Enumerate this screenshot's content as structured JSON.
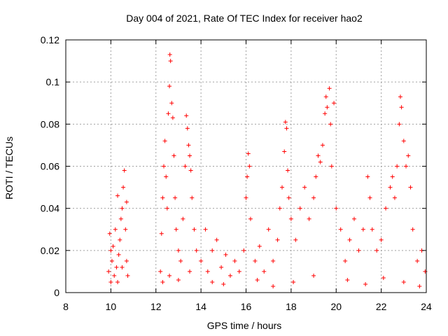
{
  "chart_data": {
    "type": "scatter",
    "title": "Day 004 of 2021, Rate Of TEC Index for receiver hao2",
    "xlabel": "GPS time / hours",
    "ylabel": "ROTI / TECUs",
    "xlim": [
      8,
      24
    ],
    "ylim": [
      0,
      0.12
    ],
    "x_ticks": [
      "8",
      "10",
      "12",
      "14",
      "16",
      "18",
      "20",
      "22",
      "24"
    ],
    "y_ticks": [
      "0",
      "0.02",
      "0.04",
      "0.06",
      "0.08",
      "0.1",
      "0.12"
    ],
    "x_tick_values": [
      8,
      10,
      12,
      14,
      16,
      18,
      20,
      22,
      24
    ],
    "y_tick_values": [
      0,
      0.02,
      0.04,
      0.06,
      0.08,
      0.1,
      0.12
    ],
    "grid": true,
    "marker": "+",
    "color": "#ff0000",
    "points": [
      [
        9.9,
        0.01
      ],
      [
        9.95,
        0.028
      ],
      [
        10.0,
        0.005
      ],
      [
        10.05,
        0.015
      ],
      [
        10.1,
        0.022
      ],
      [
        10.15,
        0.008
      ],
      [
        10.2,
        0.03
      ],
      [
        10.25,
        0.012
      ],
      [
        10.3,
        0.046
      ],
      [
        10.35,
        0.018
      ],
      [
        10.4,
        0.025
      ],
      [
        10.45,
        0.035
      ],
      [
        10.5,
        0.04
      ],
      [
        10.55,
        0.05
      ],
      [
        10.6,
        0.058
      ],
      [
        10.65,
        0.03
      ],
      [
        10.7,
        0.015
      ],
      [
        10.75,
        0.008
      ],
      [
        10.0,
        0.02
      ],
      [
        10.3,
        0.005
      ],
      [
        10.5,
        0.012
      ],
      [
        10.7,
        0.043
      ],
      [
        12.2,
        0.01
      ],
      [
        12.25,
        0.028
      ],
      [
        12.3,
        0.045
      ],
      [
        12.35,
        0.06
      ],
      [
        12.4,
        0.072
      ],
      [
        12.45,
        0.055
      ],
      [
        12.5,
        0.04
      ],
      [
        12.55,
        0.085
      ],
      [
        12.6,
        0.098
      ],
      [
        12.62,
        0.113
      ],
      [
        12.65,
        0.11
      ],
      [
        12.7,
        0.09
      ],
      [
        12.75,
        0.083
      ],
      [
        12.8,
        0.065
      ],
      [
        12.85,
        0.045
      ],
      [
        12.9,
        0.03
      ],
      [
        13.0,
        0.02
      ],
      [
        13.1,
        0.015
      ],
      [
        13.2,
        0.035
      ],
      [
        13.3,
        0.06
      ],
      [
        13.35,
        0.084
      ],
      [
        13.4,
        0.078
      ],
      [
        13.45,
        0.07
      ],
      [
        13.5,
        0.065
      ],
      [
        13.55,
        0.058
      ],
      [
        13.6,
        0.045
      ],
      [
        13.7,
        0.03
      ],
      [
        13.8,
        0.02
      ],
      [
        12.3,
        0.005
      ],
      [
        12.6,
        0.008
      ],
      [
        13.0,
        0.006
      ],
      [
        13.5,
        0.01
      ],
      [
        14.0,
        0.015
      ],
      [
        14.2,
        0.03
      ],
      [
        14.3,
        0.01
      ],
      [
        14.5,
        0.02
      ],
      [
        14.7,
        0.025
      ],
      [
        14.9,
        0.012
      ],
      [
        15.1,
        0.018
      ],
      [
        15.3,
        0.008
      ],
      [
        15.5,
        0.015
      ],
      [
        15.7,
        0.01
      ],
      [
        15.9,
        0.02
      ],
      [
        16.0,
        0.045
      ],
      [
        16.05,
        0.055
      ],
      [
        16.1,
        0.066
      ],
      [
        16.15,
        0.06
      ],
      [
        16.2,
        0.035
      ],
      [
        16.4,
        0.015
      ],
      [
        16.6,
        0.022
      ],
      [
        16.8,
        0.01
      ],
      [
        17.0,
        0.03
      ],
      [
        17.2,
        0.015
      ],
      [
        17.4,
        0.025
      ],
      [
        17.5,
        0.04
      ],
      [
        17.6,
        0.05
      ],
      [
        17.7,
        0.067
      ],
      [
        17.75,
        0.081
      ],
      [
        17.8,
        0.078
      ],
      [
        17.85,
        0.058
      ],
      [
        17.9,
        0.045
      ],
      [
        18.0,
        0.035
      ],
      [
        18.2,
        0.025
      ],
      [
        18.4,
        0.04
      ],
      [
        18.6,
        0.05
      ],
      [
        18.8,
        0.035
      ],
      [
        19.0,
        0.045
      ],
      [
        19.1,
        0.055
      ],
      [
        19.2,
        0.065
      ],
      [
        19.3,
        0.062
      ],
      [
        19.4,
        0.07
      ],
      [
        19.5,
        0.085
      ],
      [
        19.55,
        0.093
      ],
      [
        19.6,
        0.088
      ],
      [
        19.7,
        0.097
      ],
      [
        19.75,
        0.08
      ],
      [
        19.8,
        0.06
      ],
      [
        19.9,
        0.09
      ],
      [
        20.0,
        0.04
      ],
      [
        20.2,
        0.03
      ],
      [
        20.4,
        0.015
      ],
      [
        20.6,
        0.025
      ],
      [
        20.8,
        0.035
      ],
      [
        21.0,
        0.02
      ],
      [
        21.2,
        0.03
      ],
      [
        21.4,
        0.055
      ],
      [
        21.5,
        0.045
      ],
      [
        21.6,
        0.03
      ],
      [
        21.8,
        0.02
      ],
      [
        22.0,
        0.025
      ],
      [
        22.2,
        0.04
      ],
      [
        22.4,
        0.05
      ],
      [
        22.5,
        0.055
      ],
      [
        22.6,
        0.045
      ],
      [
        22.7,
        0.06
      ],
      [
        22.8,
        0.08
      ],
      [
        22.85,
        0.093
      ],
      [
        22.9,
        0.088
      ],
      [
        23.0,
        0.072
      ],
      [
        23.1,
        0.06
      ],
      [
        23.2,
        0.065
      ],
      [
        23.3,
        0.05
      ],
      [
        23.4,
        0.03
      ],
      [
        23.6,
        0.015
      ],
      [
        23.8,
        0.02
      ],
      [
        23.95,
        0.01
      ],
      [
        14.5,
        0.005
      ],
      [
        15.0,
        0.004
      ],
      [
        16.5,
        0.006
      ],
      [
        17.2,
        0.003
      ],
      [
        18.1,
        0.005
      ],
      [
        19.0,
        0.008
      ],
      [
        20.5,
        0.006
      ],
      [
        21.3,
        0.004
      ],
      [
        22.1,
        0.007
      ],
      [
        23.0,
        0.005
      ],
      [
        23.7,
        0.003
      ]
    ]
  }
}
